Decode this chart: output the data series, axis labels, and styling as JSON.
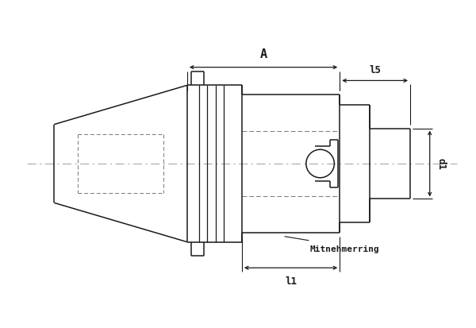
{
  "bg_color": "#ffffff",
  "line_color": "#1a1a1a",
  "fig_width": 6.0,
  "fig_height": 4.14,
  "dpi": 100,
  "label_A": "A",
  "label_l5": "l5",
  "label_l1": "l1",
  "label_d1": "d1",
  "label_mitnehmerring": "Mitnehmerring"
}
